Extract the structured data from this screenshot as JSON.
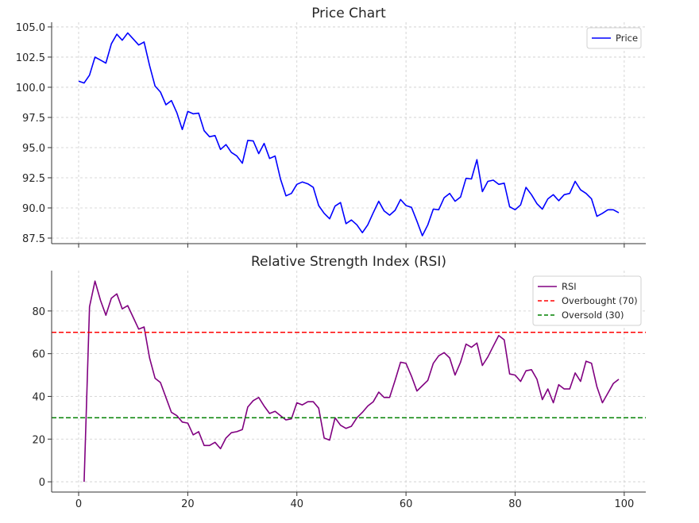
{
  "chart_data": [
    {
      "type": "line",
      "title": "Price Chart",
      "xlabel": "",
      "ylabel": "",
      "xlim": [
        -4.95,
        103.95
      ],
      "ylim": [
        87.04,
        105.39
      ],
      "grid": true,
      "xticks": [
        0,
        20,
        40,
        60,
        80,
        100
      ],
      "yticks": [
        87.5,
        90.0,
        92.5,
        95.0,
        97.5,
        100.0,
        102.5,
        105.0
      ],
      "ytick_labels": [
        "87.5",
        "90.0",
        "92.5",
        "95.0",
        "97.5",
        "100.0",
        "102.5",
        "105.0"
      ],
      "legend_position": "top-right",
      "series": [
        {
          "name": "Price",
          "color": "#0000ff",
          "dash": false,
          "x_start": 0,
          "values": [
            100.5,
            100.35,
            101.0,
            102.5,
            102.25,
            102.0,
            103.6,
            104.4,
            103.9,
            104.5,
            104.0,
            103.5,
            103.75,
            101.8,
            100.1,
            99.6,
            98.55,
            98.9,
            97.9,
            96.5,
            98.0,
            97.8,
            97.85,
            96.4,
            95.9,
            96.0,
            94.85,
            95.25,
            94.6,
            94.3,
            93.7,
            95.6,
            95.55,
            94.5,
            95.35,
            94.1,
            94.3,
            92.4,
            91.0,
            91.2,
            91.95,
            92.15,
            92.0,
            91.7,
            90.2,
            89.55,
            89.1,
            90.15,
            90.45,
            88.7,
            89.0,
            88.6,
            87.95,
            88.6,
            89.6,
            90.55,
            89.75,
            89.4,
            89.8,
            90.7,
            90.2,
            90.05,
            88.9,
            87.7,
            88.6,
            89.9,
            89.85,
            90.85,
            91.2,
            90.55,
            90.9,
            92.45,
            92.4,
            94.0,
            91.35,
            92.2,
            92.3,
            91.95,
            92.05,
            90.1,
            89.85,
            90.25,
            91.7,
            91.1,
            90.35,
            89.9,
            90.75,
            91.1,
            90.6,
            91.1,
            91.2,
            92.2,
            91.5,
            91.2,
            90.75,
            89.3,
            89.55,
            89.85,
            89.85,
            89.6
          ]
        }
      ]
    },
    {
      "type": "line",
      "title": "Relative Strength Index (RSI)",
      "xlabel": "",
      "ylabel": "",
      "xlim": [
        -4.95,
        103.95
      ],
      "ylim": [
        -4.8,
        98.9
      ],
      "grid": true,
      "xticks": [
        0,
        20,
        40,
        60,
        80,
        100
      ],
      "xtick_labels": [
        "0",
        "20",
        "40",
        "60",
        "80",
        "100"
      ],
      "yticks": [
        0,
        20,
        40,
        60,
        80
      ],
      "ytick_labels": [
        "0",
        "20",
        "40",
        "60",
        "80"
      ],
      "legend_position": "top-right",
      "series": [
        {
          "name": "RSI",
          "color": "#800080",
          "dash": false,
          "x_start": 1,
          "values": [
            0,
            82,
            94,
            85,
            78,
            86,
            88,
            81,
            82.5,
            77,
            71.5,
            72.5,
            58,
            48.5,
            46.5,
            39.5,
            32.5,
            31,
            28,
            27.5,
            22,
            23.5,
            17,
            17,
            18.5,
            15.5,
            20.5,
            23,
            23.5,
            24.5,
            35,
            38,
            39.5,
            35.5,
            32,
            33,
            31,
            29,
            29.5,
            37,
            36,
            37.5,
            37.5,
            34.5,
            20.5,
            19.5,
            30,
            26.5,
            25,
            26,
            30,
            32.5,
            35.5,
            37.5,
            42,
            39.5,
            39.5,
            47.5,
            56,
            55.5,
            49.5,
            42.5,
            45,
            47.5,
            55.5,
            59,
            60.5,
            58,
            50,
            56,
            64.5,
            63,
            65,
            54.5,
            58.5,
            63.5,
            68.5,
            66.5,
            50.5,
            50,
            47,
            52,
            52.5,
            48,
            38.5,
            43.5,
            37,
            45.5,
            43.5,
            43.5,
            51,
            47,
            56.5,
            55.5,
            44.5,
            37,
            41.5,
            46,
            48
          ]
        },
        {
          "name": "Overbought (70)",
          "color": "#ff0000",
          "dash": true,
          "hline": 70
        },
        {
          "name": "Oversold (30)",
          "color": "#008000",
          "dash": true,
          "hline": 30
        }
      ]
    }
  ]
}
